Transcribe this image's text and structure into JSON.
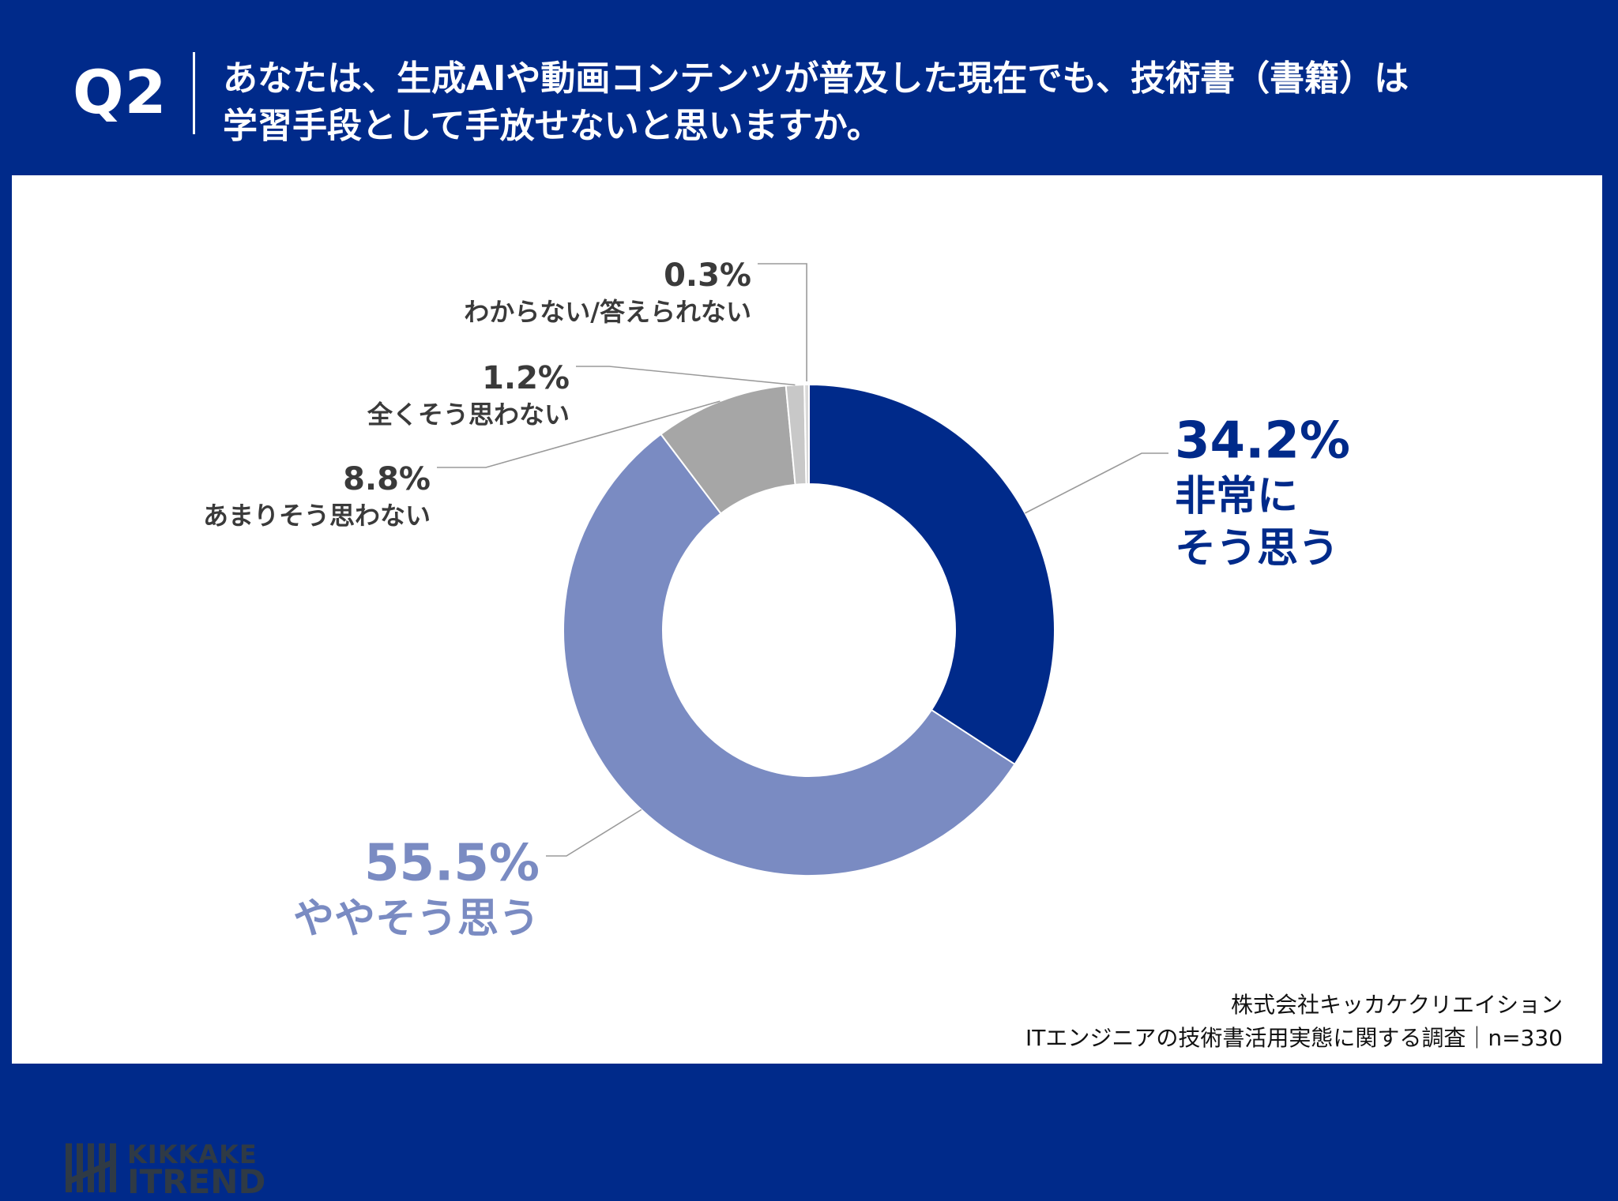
{
  "header": {
    "q_label": "Q2",
    "question_line1": "あなたは、生成AIや動画コンテンツが普及した現在でも、技術書（書籍）は",
    "question_line2": "学習手段として手放せないと思いますか。"
  },
  "chart_data": {
    "type": "pie",
    "title": "",
    "categories": [
      "非常にそう思う",
      "ややそう思う",
      "あまりそう思わない",
      "全くそう思わない",
      "わからない/答えられない"
    ],
    "values": [
      34.2,
      55.5,
      8.8,
      1.2,
      0.3
    ],
    "unit": "%",
    "value_labels": [
      "34.2%",
      "55.5%",
      "8.8%",
      "1.2%",
      "0.3%"
    ],
    "label_lines": [
      [
        "非常に",
        "そう思う"
      ],
      [
        "ややそう思う"
      ],
      [
        "あまりそう思わない"
      ],
      [
        "全くそう思わない"
      ],
      [
        "わからない/答えられない"
      ]
    ],
    "colors": [
      "#002a8a",
      "#7a8bc2",
      "#a6a6a6",
      "#c8c8c8",
      "#d9d9d9"
    ],
    "label_colors": [
      "#002a8a",
      "#7a8bc2",
      "#3a3a3a",
      "#3a3a3a",
      "#3a3a3a"
    ],
    "donut": true,
    "start": "12 o'clock",
    "direction": "clockwise"
  },
  "footer": {
    "logo_line1": "KIKKAKE",
    "logo_line2": "ITREND",
    "company": "株式会社キッカケクリエイション",
    "survey": "ITエンジニアの技術書活用実態に関する調査｜n=330"
  },
  "brand_color": "#002a8a"
}
